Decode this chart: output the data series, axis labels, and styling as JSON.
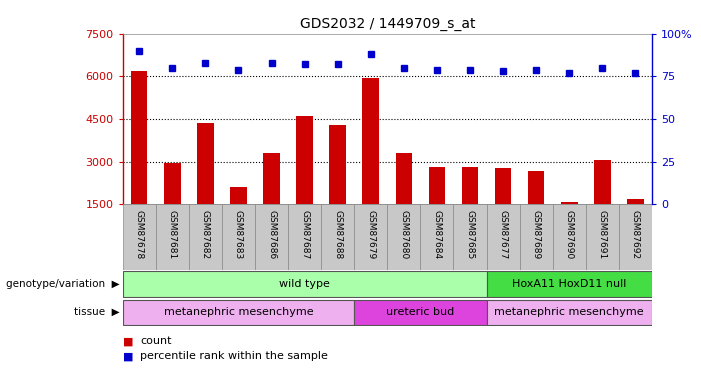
{
  "title": "GDS2032 / 1449709_s_at",
  "samples": [
    "GSM87678",
    "GSM87681",
    "GSM87682",
    "GSM87683",
    "GSM87686",
    "GSM87687",
    "GSM87688",
    "GSM87679",
    "GSM87680",
    "GSM87684",
    "GSM87685",
    "GSM87677",
    "GSM87689",
    "GSM87690",
    "GSM87691",
    "GSM87692"
  ],
  "counts": [
    6200,
    2950,
    4350,
    2100,
    3300,
    4600,
    4300,
    5950,
    3300,
    2820,
    2820,
    2780,
    2680,
    1600,
    3050,
    1700
  ],
  "percentiles": [
    90,
    80,
    83,
    79,
    83,
    82,
    82,
    88,
    80,
    79,
    79,
    78,
    79,
    77,
    80,
    77
  ],
  "ylim_left": [
    1500,
    7500
  ],
  "ylim_right": [
    0,
    100
  ],
  "yticks_left": [
    1500,
    3000,
    4500,
    6000,
    7500
  ],
  "yticks_right": [
    0,
    25,
    50,
    75,
    100
  ],
  "bar_color": "#cc0000",
  "dot_color": "#0000cc",
  "tick_area_color": "#c8c8c8",
  "genotype_groups": [
    {
      "label": "wild type",
      "start": 0,
      "end": 10,
      "color": "#aaffaa"
    },
    {
      "label": "HoxA11 HoxD11 null",
      "start": 11,
      "end": 15,
      "color": "#44dd44"
    }
  ],
  "tissue_groups": [
    {
      "label": "metanephric mesenchyme",
      "start": 0,
      "end": 6,
      "color": "#eeb0ee"
    },
    {
      "label": "ureteric bud",
      "start": 7,
      "end": 10,
      "color": "#dd44dd"
    },
    {
      "label": "metanephric mesenchyme",
      "start": 11,
      "end": 15,
      "color": "#eeb0ee"
    }
  ],
  "legend_count_color": "#cc0000",
  "legend_pct_color": "#0000cc"
}
